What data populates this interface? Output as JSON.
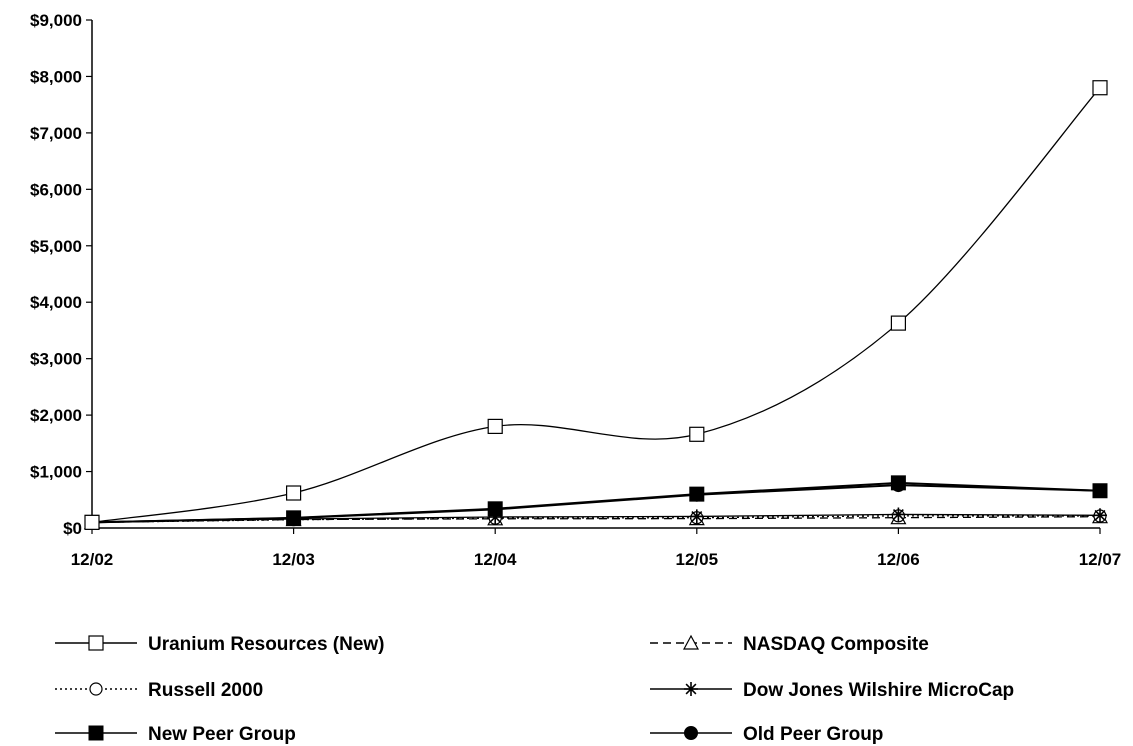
{
  "chart_data": {
    "type": "line",
    "categories": [
      "12/02",
      "12/03",
      "12/04",
      "12/05",
      "12/06",
      "12/07"
    ],
    "ylim": [
      0,
      9000
    ],
    "yticks": [
      0,
      1000,
      2000,
      3000,
      4000,
      5000,
      6000,
      7000,
      8000,
      9000
    ],
    "ytick_labels": [
      "$0",
      "$1,000",
      "$2,000",
      "$3,000",
      "$4,000",
      "$5,000",
      "$6,000",
      "$7,000",
      "$8,000",
      "$9,000"
    ],
    "grid": false,
    "legend_placement": "bottom",
    "series": [
      {
        "name": "Uranium Resources (New)",
        "values": [
          100,
          620,
          1800,
          1660,
          3630,
          7800
        ],
        "marker": "square-open",
        "line": "solid",
        "smooth": true
      },
      {
        "name": "NASDAQ Composite",
        "values": [
          100,
          150,
          163,
          166,
          183,
          200
        ],
        "marker": "triangle-open",
        "line": "dashed",
        "smooth": false
      },
      {
        "name": "Russell 2000",
        "values": [
          100,
          147,
          174,
          182,
          215,
          212
        ],
        "marker": "circle-open",
        "line": "dotted",
        "smooth": false
      },
      {
        "name": "Dow Jones Wilshire MicroCap",
        "values": [
          100,
          160,
          195,
          205,
          240,
          225
        ],
        "marker": "star",
        "line": "solid",
        "smooth": false
      },
      {
        "name": "New Peer Group",
        "values": [
          100,
          180,
          340,
          600,
          800,
          660
        ],
        "marker": "square-filled",
        "line": "solid",
        "smooth": false
      },
      {
        "name": "Old Peer Group",
        "values": [
          100,
          175,
          330,
          590,
          760,
          660
        ],
        "marker": "circle-filled",
        "line": "solid",
        "smooth": false
      }
    ]
  }
}
